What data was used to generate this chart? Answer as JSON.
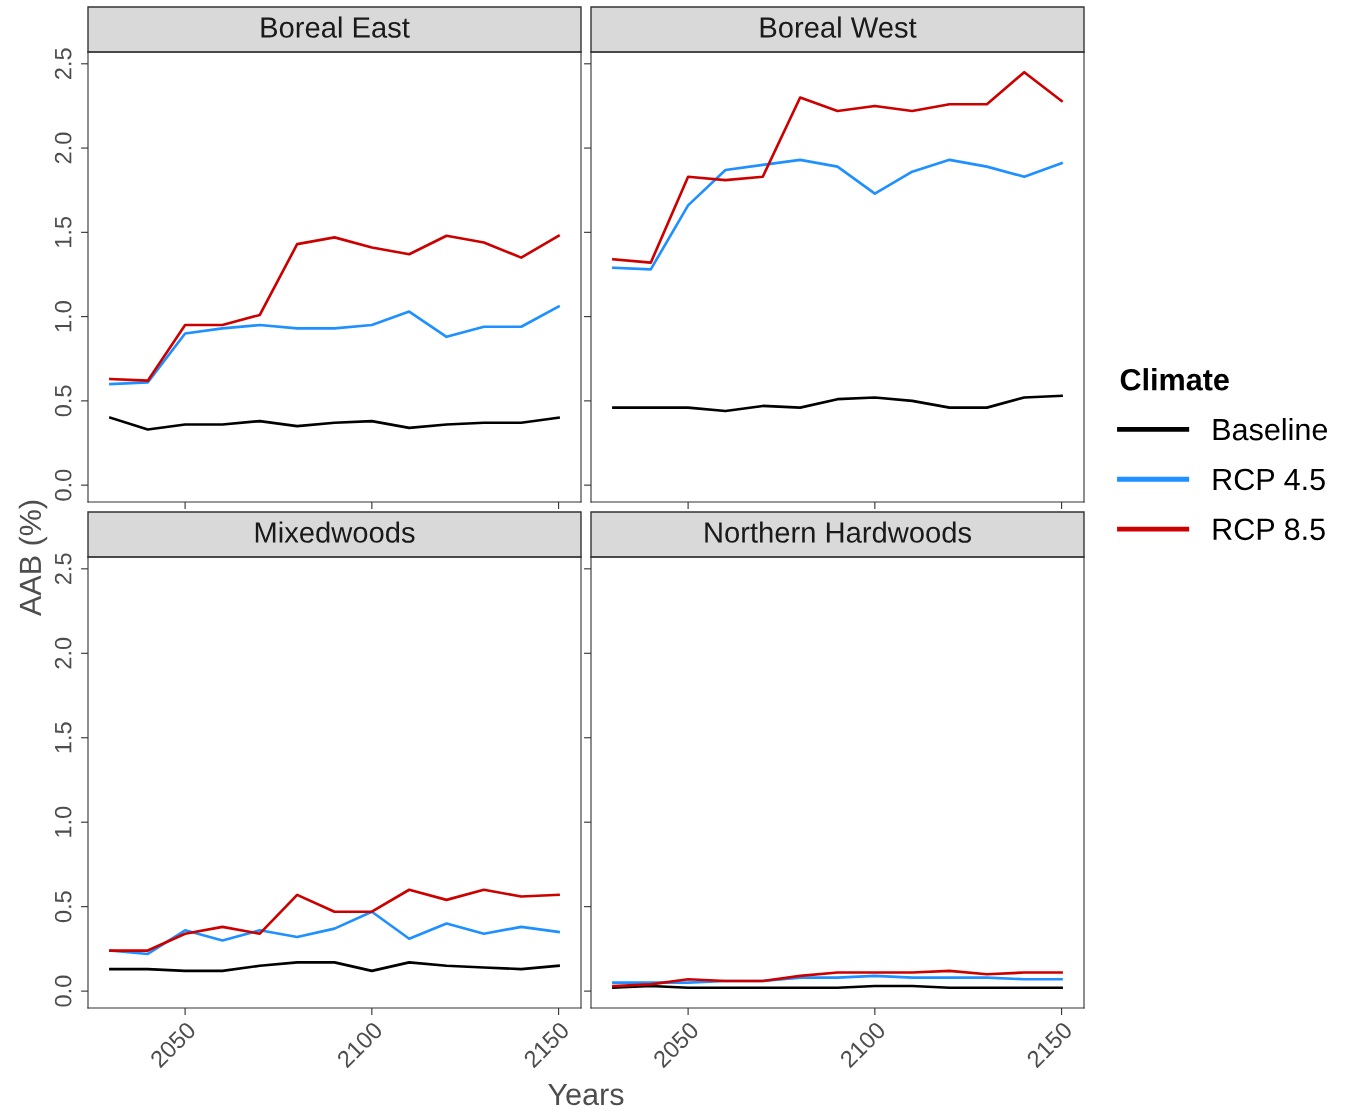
{
  "chart_data": [
    {
      "type": "line",
      "title": "Boreal East",
      "ylabel": "AAB (%)",
      "xlabel": "Years",
      "legend_title": "Climate",
      "legend": "right",
      "grid": false,
      "tick_labels": "y",
      "x": [
        2030,
        2040,
        2050,
        2060,
        2070,
        2080,
        2090,
        2100,
        2110,
        2120,
        2130,
        2140,
        2150
      ],
      "xlim": [
        2024,
        2156
      ],
      "ylim": [
        -0.1,
        2.57
      ],
      "xticks": [
        2050,
        2100,
        2150
      ],
      "yticks": [
        {
          "value": 0,
          "label": "0.0"
        },
        0.5,
        {
          "value": 1,
          "label": "1.0"
        },
        1.5,
        {
          "value": 2,
          "label": "2.0"
        },
        2.5
      ],
      "series": [
        {
          "name": "Baseline",
          "color": "#000000",
          "values": [
            0.4,
            0.33,
            0.36,
            0.36,
            0.38,
            0.35,
            0.37,
            0.38,
            0.34,
            0.36,
            0.37,
            0.37,
            0.4
          ]
        },
        {
          "name": "RCP 4.5",
          "color": "#1e90ff",
          "values": [
            0.6,
            0.61,
            0.9,
            0.93,
            0.95,
            0.93,
            0.93,
            0.95,
            1.03,
            0.88,
            0.94,
            0.94,
            1.06
          ]
        },
        {
          "name": "RCP 8.5",
          "color": "#cd0000",
          "values": [
            0.63,
            0.62,
            0.95,
            0.95,
            1.01,
            1.43,
            1.47,
            1.41,
            1.37,
            1.48,
            1.44,
            1.35,
            1.48
          ]
        }
      ]
    },
    {
      "type": "line",
      "title": "Boreal West",
      "grid": false,
      "tick_labels": false,
      "x": [
        2030,
        2040,
        2050,
        2060,
        2070,
        2080,
        2090,
        2100,
        2110,
        2120,
        2130,
        2140,
        2150
      ],
      "xlim": [
        2024,
        2156
      ],
      "ylim": [
        -0.1,
        2.57
      ],
      "xticks": [
        2050,
        2100,
        2150
      ],
      "yticks": [
        0,
        0.5,
        1,
        1.5,
        2,
        2.5
      ],
      "series": [
        {
          "color": "#000000",
          "values": [
            0.46,
            0.46,
            0.46,
            0.44,
            0.47,
            0.46,
            0.51,
            0.52,
            0.5,
            0.46,
            0.46,
            0.52,
            0.53
          ]
        },
        {
          "color": "#1e90ff",
          "values": [
            1.29,
            1.28,
            1.66,
            1.87,
            1.9,
            1.93,
            1.89,
            1.73,
            1.86,
            1.93,
            1.89,
            1.83,
            1.91
          ]
        },
        {
          "color": "#cd0000",
          "values": [
            1.34,
            1.32,
            1.83,
            1.81,
            1.83,
            2.3,
            2.22,
            2.25,
            2.22,
            2.26,
            2.26,
            2.45,
            2.28
          ]
        }
      ]
    },
    {
      "type": "line",
      "title": "Mixedwoods",
      "grid": false,
      "x": [
        2030,
        2040,
        2050,
        2060,
        2070,
        2080,
        2090,
        2100,
        2110,
        2120,
        2130,
        2140,
        2150
      ],
      "xlim": [
        2024,
        2156
      ],
      "ylim": [
        -0.1,
        2.57
      ],
      "xticks": [
        2050,
        2100,
        2150
      ],
      "yticks": [
        {
          "value": 0,
          "label": "0.0"
        },
        0.5,
        {
          "value": 1,
          "label": "1.0"
        },
        1.5,
        {
          "value": 2,
          "label": "2.0"
        },
        2.5
      ],
      "series": [
        {
          "color": "#000000",
          "values": [
            0.13,
            0.13,
            0.12,
            0.12,
            0.15,
            0.17,
            0.17,
            0.12,
            0.17,
            0.15,
            0.14,
            0.13,
            0.15
          ]
        },
        {
          "color": "#1e90ff",
          "values": [
            0.24,
            0.22,
            0.36,
            0.3,
            0.36,
            0.32,
            0.37,
            0.47,
            0.31,
            0.4,
            0.34,
            0.38,
            0.35
          ]
        },
        {
          "color": "#cd0000",
          "values": [
            0.24,
            0.24,
            0.34,
            0.38,
            0.34,
            0.57,
            0.47,
            0.47,
            0.6,
            0.54,
            0.6,
            0.56,
            0.57
          ]
        }
      ]
    },
    {
      "type": "line",
      "title": "Northern Hardwoods",
      "grid": false,
      "tick_labels": "x",
      "x": [
        2030,
        2040,
        2050,
        2060,
        2070,
        2080,
        2090,
        2100,
        2110,
        2120,
        2130,
        2140,
        2150
      ],
      "xlim": [
        2024,
        2156
      ],
      "ylim": [
        -0.1,
        2.57
      ],
      "xticks": [
        2050,
        2100,
        2150
      ],
      "yticks": [
        0,
        0.5,
        1,
        1.5,
        2,
        2.5
      ],
      "series": [
        {
          "color": "#000000",
          "values": [
            0.02,
            0.03,
            0.02,
            0.02,
            0.02,
            0.02,
            0.02,
            0.03,
            0.03,
            0.02,
            0.02,
            0.02,
            0.02
          ]
        },
        {
          "color": "#1e90ff",
          "values": [
            0.05,
            0.05,
            0.05,
            0.06,
            0.06,
            0.08,
            0.08,
            0.09,
            0.08,
            0.08,
            0.08,
            0.07,
            0.07
          ]
        },
        {
          "color": "#cd0000",
          "values": [
            0.03,
            0.04,
            0.07,
            0.06,
            0.06,
            0.09,
            0.11,
            0.11,
            0.11,
            0.12,
            0.1,
            0.11,
            0.11
          ]
        }
      ]
    }
  ]
}
